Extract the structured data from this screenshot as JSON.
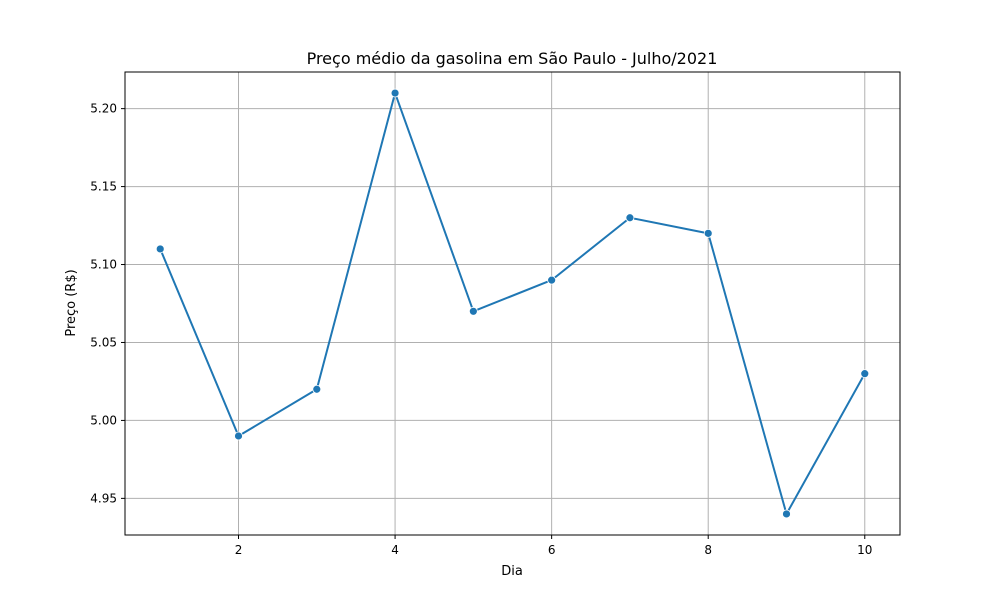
{
  "chart_data": {
    "type": "line",
    "title": "Preço médio da gasolina em São Paulo - Julho/2021",
    "xlabel": "Dia",
    "ylabel": "Preço (R$)",
    "x": [
      1,
      2,
      3,
      4,
      5,
      6,
      7,
      8,
      9,
      10
    ],
    "series": [
      {
        "values": [
          5.11,
          4.99,
          5.02,
          5.21,
          5.07,
          5.09,
          5.13,
          5.12,
          4.94,
          5.03
        ]
      }
    ],
    "xticks": [
      2,
      4,
      6,
      8,
      10
    ],
    "xtick_labels": [
      "2",
      "4",
      "6",
      "8",
      "10"
    ],
    "yticks": [
      4.95,
      5.0,
      5.05,
      5.1,
      5.15,
      5.2
    ],
    "ytick_labels": [
      "4.95",
      "5.00",
      "5.05",
      "5.10",
      "5.15",
      "5.20"
    ],
    "xlim": [
      0.55,
      10.45
    ],
    "ylim": [
      4.9265,
      5.2235
    ],
    "grid": true,
    "markers": true,
    "line_color": "#1f77b4"
  }
}
